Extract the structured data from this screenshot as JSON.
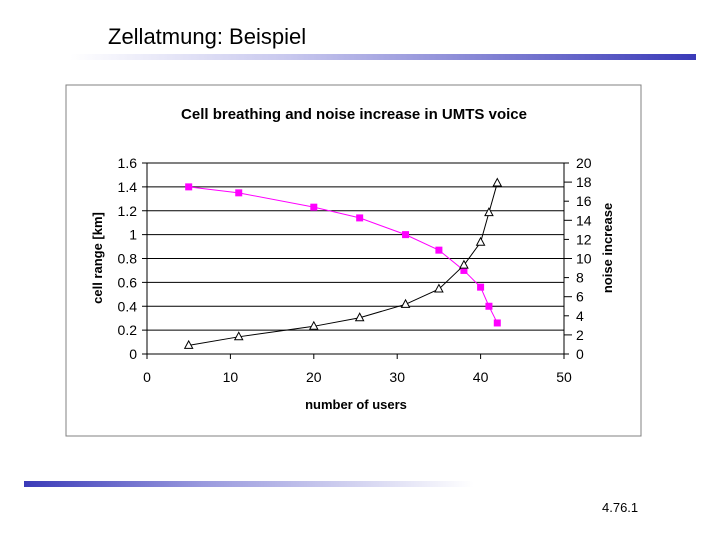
{
  "slide": {
    "title": "Zellatmung: Beispiel",
    "number": "4.76.1"
  },
  "colors": {
    "range_series": "#ff00ff",
    "noise_series": "#000000",
    "grid": "#000000",
    "plot_frame": "#808080",
    "accent": "#3a3ab8"
  },
  "chart_data": {
    "type": "line",
    "title": "Cell breathing and noise increase in UMTS voice",
    "xlabel": "number of users",
    "ylabel": "cell range [km]",
    "y2label": "noise increase",
    "xlim": [
      0,
      50
    ],
    "ylim": [
      0,
      1.6
    ],
    "y2lim": [
      0,
      20
    ],
    "x_ticks": [
      "0",
      "10",
      "20",
      "30",
      "40",
      "50"
    ],
    "y_ticks": [
      "0",
      "0.2",
      "0.4",
      "0.6",
      "0.8",
      "1",
      "1.2",
      "1.4",
      "1.6"
    ],
    "y2_ticks": [
      "0",
      "2",
      "4",
      "6",
      "8",
      "10",
      "12",
      "14",
      "16",
      "18",
      "20"
    ],
    "grid": true,
    "series": [
      {
        "name": "cell range",
        "axis": "left",
        "marker": "square",
        "x": [
          5,
          11,
          20,
          25.5,
          31,
          35,
          38,
          40,
          41,
          42
        ],
        "y": [
          1.4,
          1.35,
          1.23,
          1.14,
          1.0,
          0.87,
          0.7,
          0.56,
          0.4,
          0.26
        ]
      },
      {
        "name": "noise increase",
        "axis": "right",
        "marker": "triangle",
        "x": [
          5,
          11,
          20,
          25.5,
          31,
          35,
          38,
          40,
          41,
          42
        ],
        "y": [
          0.9,
          1.8,
          2.9,
          3.8,
          5.2,
          6.8,
          9.3,
          11.7,
          14.8,
          17.9
        ]
      }
    ]
  }
}
